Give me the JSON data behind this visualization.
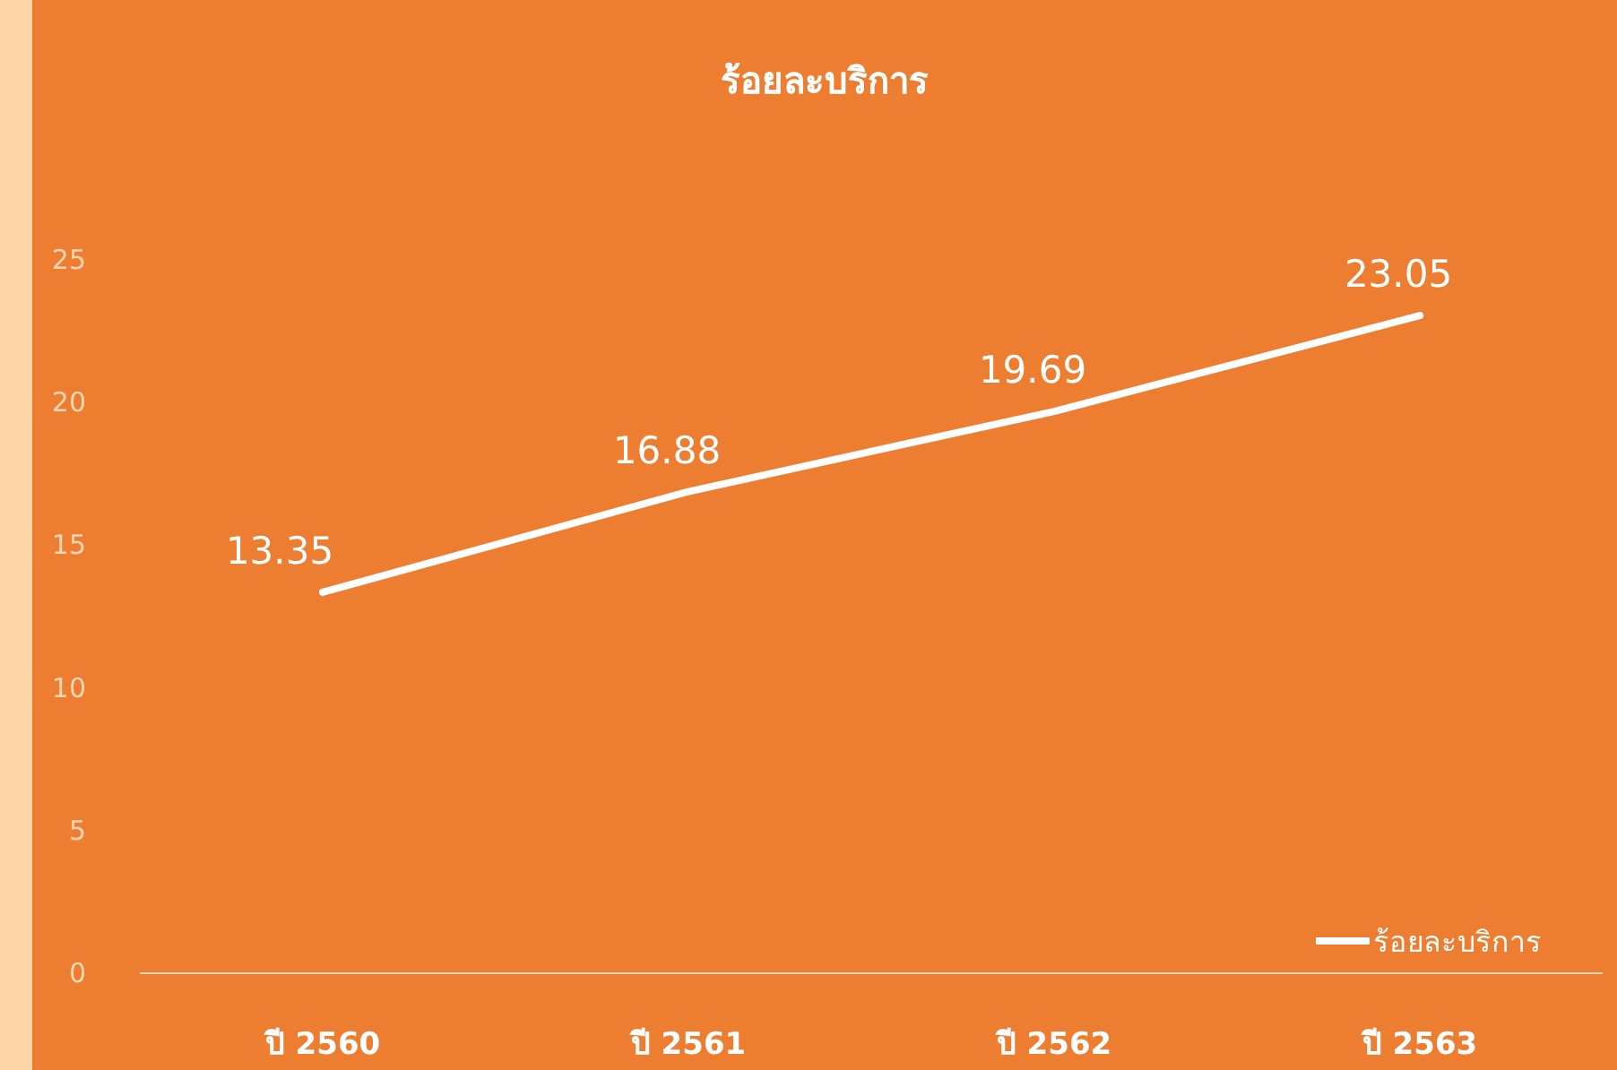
{
  "chart_data": {
    "type": "line",
    "title": "ร้อยละบริการ",
    "categories": [
      "ปี 2560",
      "ปี 2561",
      "ปี 2562",
      "ปี 2563"
    ],
    "series": [
      {
        "name": "ร้อยละบริการ",
        "color": "#ffffff",
        "values": [
          13.35,
          16.88,
          19.69,
          23.05
        ]
      }
    ],
    "ylim": [
      0,
      25
    ],
    "yticks": [
      0,
      5,
      10,
      15,
      20,
      25
    ],
    "grid": false,
    "legend": "bottom right",
    "data_labels": true,
    "marker": "none",
    "line_style": "solid"
  }
}
